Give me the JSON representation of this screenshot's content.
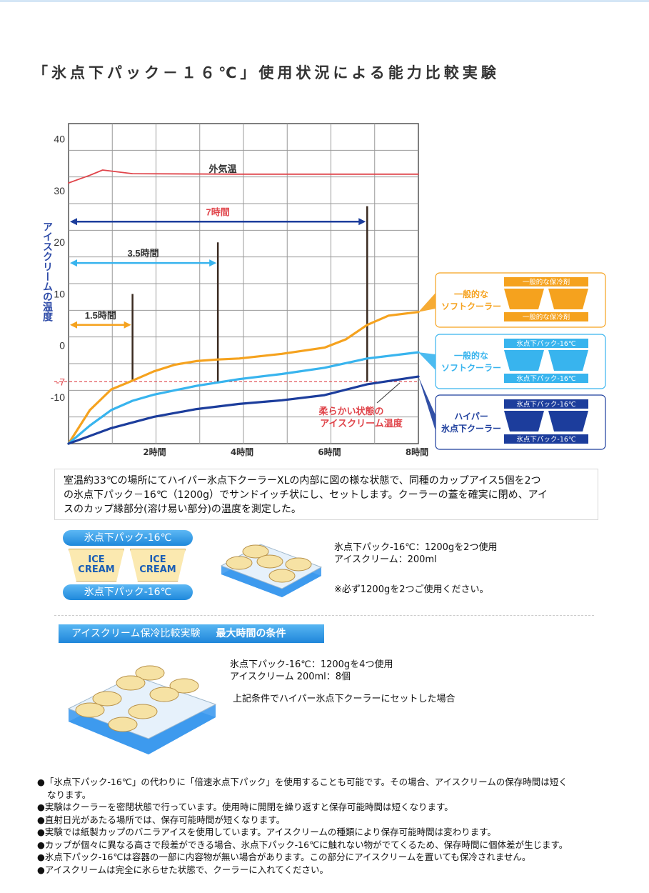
{
  "page": {
    "title": "「氷点下パック－１６℃」使用状況による能力比較実験"
  },
  "chart_data": {
    "type": "line",
    "ylabel": "アイスクリームの温度",
    "y_ticks": [
      "40",
      "30",
      "20",
      "10",
      "0",
      "-7",
      "-10"
    ],
    "x_ticks": [
      "2時間",
      "4時間",
      "6時間",
      "8時間"
    ],
    "xlim": [
      0,
      8.2
    ],
    "ylim": [
      -19,
      43
    ],
    "grid": true,
    "series": [
      {
        "name": "外気温",
        "color": "#e0454b",
        "points": [
          [
            0,
            31.5
          ],
          [
            0.5,
            33
          ],
          [
            0.8,
            34
          ],
          [
            1.5,
            33.3
          ],
          [
            4,
            33.2
          ],
          [
            8.2,
            33.2
          ]
        ]
      },
      {
        "name": "一般的なソフトクーラー",
        "color": "#f5a21e",
        "points": [
          [
            0,
            -19
          ],
          [
            0.5,
            -12.5
          ],
          [
            1.0,
            -8.5
          ],
          [
            1.5,
            -6.8
          ],
          [
            2.0,
            -5
          ],
          [
            2.5,
            -3.7
          ],
          [
            3.0,
            -3
          ],
          [
            3.5,
            -2.7
          ],
          [
            4,
            -2.5
          ],
          [
            5,
            -1.6
          ],
          [
            6,
            -0.4
          ],
          [
            6.5,
            1.2
          ],
          [
            7.0,
            4
          ],
          [
            7.5,
            5.8
          ],
          [
            8.2,
            6.5
          ]
        ]
      },
      {
        "name": "一般的なソフトクーラー（氷点下パック-16℃）",
        "color": "#38b4ee",
        "points": [
          [
            0,
            -19
          ],
          [
            0.5,
            -15.5
          ],
          [
            1.0,
            -12.5
          ],
          [
            1.5,
            -10.7
          ],
          [
            2.0,
            -9.5
          ],
          [
            3,
            -7.8
          ],
          [
            4,
            -6.5
          ],
          [
            5,
            -5.5
          ],
          [
            6,
            -4.3
          ],
          [
            7,
            -2.5
          ],
          [
            8.2,
            -1.3
          ]
        ]
      },
      {
        "name": "ハイパー氷点下クーラー",
        "color": "#1c3d9c",
        "points": [
          [
            0,
            -19
          ],
          [
            0.5,
            -17.5
          ],
          [
            1.0,
            -16
          ],
          [
            2,
            -13.8
          ],
          [
            3,
            -12.3
          ],
          [
            4,
            -11.3
          ],
          [
            5,
            -10.6
          ],
          [
            6,
            -9.6
          ],
          [
            7,
            -7.5
          ],
          [
            8.2,
            -6
          ]
        ]
      }
    ],
    "labels": {
      "outside_air": "外気温",
      "soft_icecream_temp_line1": "柔らかい状態の",
      "soft_icecream_temp_line2": "アイスクリーム温度"
    },
    "threshold": {
      "value": -7,
      "color": "#e0454b"
    },
    "durations": [
      {
        "label": "1.5時間",
        "hours": 1.5,
        "color": "#f5a21e",
        "y": 4
      },
      {
        "label": "3.5時間",
        "hours": 3.5,
        "color": "#38b4ee",
        "y": 16
      },
      {
        "label": "7時間",
        "hours": 7,
        "color": "#1c3d9c",
        "label_color": "#e0454b",
        "y": 24
      }
    ],
    "markers": [
      {
        "hours": 1.5,
        "top": 10
      },
      {
        "hours": 3.5,
        "top": 20
      },
      {
        "hours": 7,
        "top": 27
      }
    ]
  },
  "legend": [
    {
      "name_line1": "一般的な",
      "name_line2": "ソフトクーラー",
      "color": "#f5a21e",
      "name_color": "#f5a21e",
      "top_label": "一般的な保冷剤",
      "bottom_label": "一般的な保冷剤"
    },
    {
      "name_line1": "一般的な",
      "name_line2": "ソフトクーラー",
      "color": "#38b4ee",
      "name_color": "#38b4ee",
      "top_label": "氷点下パック-16℃",
      "bottom_label": "氷点下パック-16℃"
    },
    {
      "name_line1": "ハイパー",
      "name_line2": "氷点下クーラー",
      "color": "#1c3d9c",
      "name_color": "#1c3d9c",
      "top_label": "氷点下パック-16℃",
      "bottom_label": "氷点下パック-16℃"
    }
  ],
  "description": {
    "line1": "室温約33℃の場所にてハイパー氷点下クーラーXLの内部に図の様な状態で、同種のカップアイス5個を2つ",
    "line2": "の氷点下パック－16℃（1200g）でサンドイッチ状にし、セットします。クーラーの蓋を確実に閉め、アイ",
    "line3": "スのカップ縁部分(溶け易い部分)の温度を測定した。"
  },
  "setup1": {
    "pack_top": "氷点下パック-16℃",
    "pack_bottom": "氷点下パック-16℃",
    "cup_text_1": "ICE",
    "cup_text_2": "CREAM",
    "note1": "氷点下パック-16℃：1200gを2つ使用",
    "note2": "アイスクリーム：200ml",
    "note3": "※必ず1200gを2つご使用ください。"
  },
  "section2": {
    "banner_main": "アイスクリーム保冷比較実験",
    "banner_sub": "最大時間の条件",
    "note1": "氷点下パック-16℃：1200gを4つ使用",
    "note2": "アイスクリーム 200ml：8個",
    "note3": "上記条件でハイパー氷点下クーラーにセットした場合"
  },
  "bullets": {
    "b1": "●「氷点下パック-16℃」の代わりに「倍速氷点下パック」を使用することも可能です。その場合、アイスクリームの保存時間は短く",
    "b1b": "なります。",
    "b2": "●実験はクーラーを密閉状態で行っています。使用時に開閉を繰り返すと保存可能時間は短くなります。",
    "b3": "●直射日光があたる場所では、保存可能時間が短くなります。",
    "b4": "●実験では紙製カップのバニラアイスを使用しています。アイスクリームの種類により保存可能時間は変わります。",
    "b5": "●カップが個々に異なる高さで段差ができる場合、氷点下パック-16℃に触れない物がでてくるため、保存時間に個体差が生じます。",
    "b6": "●氷点下パック-16℃は容器の一部に内容物が無い場合があります。この部分にアイスクリームを置いても保冷されません。",
    "b7": "●アイスクリームは完全に氷らせた状態で、クーラーに入れてください。"
  }
}
